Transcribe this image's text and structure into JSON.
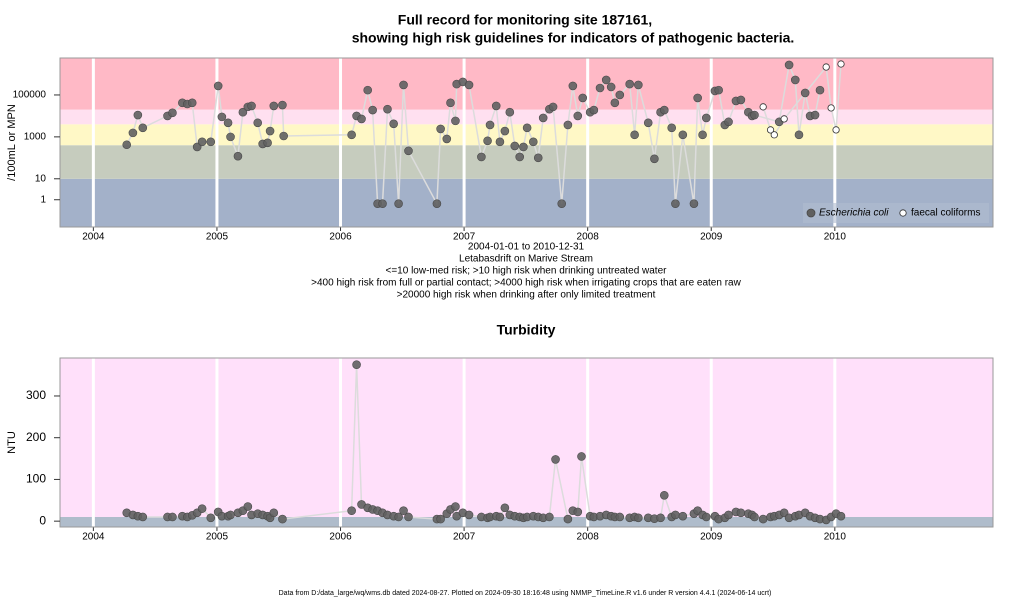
{
  "chart_data": [
    {
      "type": "scatter",
      "title": [
        "Full record for monitoring site 187161,",
        "showing high risk guidelines for indicators of pathogenic bacteria."
      ],
      "notes": [
        "2004-01-01 to 2010-12-31",
        "Letabasdrift on Marive Stream",
        "<=10 low-med risk; >10 high risk when drinking untreated water",
        ">400 high risk from full or partial contact; >4000 high risk when irrigating crops that are eaten raw",
        ">20000 high risk when drinking after only limited treatment"
      ],
      "y_label": "/100mL or MPN",
      "log_y": true,
      "xlim": [
        2003.73,
        2011.28
      ],
      "xticks": [
        2004,
        2005,
        2006,
        2007,
        2008,
        2009,
        2010
      ],
      "ylim": [
        0.05,
        5800000
      ],
      "yticks": [
        1,
        10,
        1000,
        100000
      ],
      "band_thresholds": [
        10,
        400,
        4000,
        20000
      ],
      "band_colors": [
        "#a3b1c9",
        "#c6ccbe",
        "#fff8c6",
        "#ffe0f0",
        "#ffb9c6"
      ],
      "line_color": "#dcdcdc",
      "legend": "bottom right",
      "series": [
        {
          "name": "Escherichia coli",
          "marker": "filled",
          "color": "#606060",
          "x": [
            2004.27,
            2004.32,
            2004.36,
            2004.4,
            2004.6,
            2004.64,
            2004.72,
            2004.76,
            2004.8,
            2004.84,
            2004.88,
            2004.95,
            2005.01,
            2005.04,
            2005.09,
            2005.11,
            2005.17,
            2005.21,
            2005.25,
            2005.28,
            2005.33,
            2005.37,
            2005.41,
            2005.43,
            2005.46,
            2005.53,
            2005.54,
            2006.09,
            2006.13,
            2006.17,
            2006.22,
            2006.26,
            2006.3,
            2006.34,
            2006.38,
            2006.43,
            2006.47,
            2006.51,
            2006.55,
            2006.78,
            2006.81,
            2006.86,
            2006.89,
            2006.93,
            2006.94,
            2006.99,
            2007.04,
            2007.14,
            2007.19,
            2007.21,
            2007.26,
            2007.29,
            2007.33,
            2007.37,
            2007.41,
            2007.45,
            2007.48,
            2007.51,
            2007.56,
            2007.6,
            2007.64,
            2007.69,
            2007.72,
            2007.79,
            2007.84,
            2007.88,
            2007.92,
            2007.96,
            2008.02,
            2008.05,
            2008.1,
            2008.15,
            2008.19,
            2008.22,
            2008.26,
            2008.34,
            2008.38,
            2008.41,
            2008.49,
            2008.54,
            2008.59,
            2008.62,
            2008.68,
            2008.71,
            2008.77,
            2008.86,
            2008.89,
            2008.93,
            2008.96,
            2009.03,
            2009.06,
            2009.11,
            2009.14,
            2009.2,
            2009.24,
            2009.3,
            2009.33,
            2009.35,
            2009.55,
            2009.63,
            2009.68,
            2009.71,
            2009.76,
            2009.8,
            2009.84,
            2009.88
          ],
          "values": [
            420,
            1550,
            11000,
            2700,
            10000,
            14000,
            42000,
            37000,
            42000,
            330,
            580,
            580,
            270000,
            9000,
            4700,
            1000,
            120,
            15000,
            27000,
            30000,
            4700,
            460,
            520,
            1900,
            30000,
            33000,
            1100,
            1250,
            10000,
            7200,
            170000,
            19000,
            0.65,
            0.65,
            21000,
            4200,
            0.65,
            300000,
            215,
            0.65,
            2400,
            800,
            42000,
            5800,
            330000,
            420000,
            300000,
            110,
            650,
            3700,
            30000,
            580,
            1900,
            15000,
            370,
            110,
            330,
            2700,
            580,
            100,
            8000,
            21000,
            27000,
            0.65,
            3700,
            270000,
            10000,
            72000,
            15000,
            19000,
            215000,
            520000,
            240000,
            42000,
            100000,
            330000,
            1250,
            300000,
            4700,
            90,
            15000,
            19000,
            2700,
            0.65,
            1250,
            0.65,
            72000,
            1250,
            8000,
            155000,
            170000,
            3700,
            5200,
            52000,
            58000,
            15000,
            10000,
            11000,
            5200,
            2700000,
            520000,
            1250,
            125000,
            10000,
            11000,
            170000
          ]
        },
        {
          "name": "faecal coliforms",
          "marker": "open",
          "color": "#303030",
          "x": [
            2009.42,
            2009.48,
            2009.51,
            2009.59,
            2009.93,
            2009.97,
            2010.01,
            2010.05
          ],
          "values": [
            27000,
            2150,
            1250,
            7200,
            2150000,
            24000,
            2150,
            3000000
          ]
        }
      ]
    },
    {
      "type": "scatter",
      "title": [
        "Turbidity"
      ],
      "y_label": "NTU",
      "log_y": false,
      "xlim": [
        2003.73,
        2011.28
      ],
      "xticks": [
        2004,
        2005,
        2006,
        2007,
        2008,
        2009,
        2010
      ],
      "ylim": [
        -14,
        391
      ],
      "yticks": [
        0,
        100,
        200,
        300
      ],
      "band_thresholds": [
        10
      ],
      "band_colors": [
        "#afbccb",
        "#ffe0fa"
      ],
      "line_color": "#dcdcdc",
      "series": [
        {
          "marker": "filled",
          "color": "#606060",
          "x": [
            2004.27,
            2004.32,
            2004.36,
            2004.4,
            2004.6,
            2004.64,
            2004.72,
            2004.76,
            2004.8,
            2004.84,
            2004.88,
            2004.95,
            2005.01,
            2005.04,
            2005.09,
            2005.11,
            2005.17,
            2005.21,
            2005.25,
            2005.28,
            2005.33,
            2005.37,
            2005.41,
            2005.43,
            2005.46,
            2005.53,
            2006.09,
            2006.13,
            2006.17,
            2006.22,
            2006.26,
            2006.3,
            2006.34,
            2006.38,
            2006.43,
            2006.47,
            2006.51,
            2006.55,
            2006.78,
            2006.81,
            2006.86,
            2006.89,
            2006.93,
            2006.94,
            2006.99,
            2007.04,
            2007.14,
            2007.19,
            2007.21,
            2007.26,
            2007.29,
            2007.33,
            2007.37,
            2007.41,
            2007.45,
            2007.48,
            2007.51,
            2007.56,
            2007.6,
            2007.64,
            2007.69,
            2007.74,
            2007.84,
            2007.88,
            2007.92,
            2007.95,
            2008.02,
            2008.05,
            2008.1,
            2008.15,
            2008.19,
            2008.22,
            2008.26,
            2008.34,
            2008.38,
            2008.41,
            2008.49,
            2008.54,
            2008.59,
            2008.62,
            2008.68,
            2008.71,
            2008.77,
            2008.86,
            2008.89,
            2008.93,
            2008.96,
            2009.03,
            2009.06,
            2009.11,
            2009.14,
            2009.2,
            2009.24,
            2009.3,
            2009.33,
            2009.35,
            2009.42,
            2009.48,
            2009.51,
            2009.55,
            2009.59,
            2009.63,
            2009.68,
            2009.71,
            2009.76,
            2009.8,
            2009.84,
            2009.88,
            2009.93,
            2009.97,
            2010.01,
            2010.05
          ],
          "values": [
            20,
            15,
            12,
            10,
            10,
            10,
            12,
            10,
            14,
            20,
            30,
            8,
            22,
            12,
            12,
            15,
            20,
            25,
            35,
            15,
            18,
            15,
            12,
            8,
            20,
            5,
            25,
            375,
            40,
            32,
            28,
            25,
            20,
            15,
            12,
            10,
            25,
            10,
            5,
            5,
            18,
            28,
            35,
            12,
            20,
            15,
            10,
            8,
            10,
            12,
            10,
            32,
            15,
            12,
            10,
            8,
            10,
            12,
            10,
            8,
            10,
            148,
            5,
            25,
            22,
            155,
            12,
            10,
            12,
            15,
            12,
            10,
            10,
            8,
            10,
            8,
            8,
            6,
            8,
            62,
            10,
            15,
            12,
            18,
            25,
            15,
            10,
            12,
            5,
            8,
            15,
            22,
            20,
            18,
            15,
            10,
            5,
            10,
            12,
            15,
            20,
            8,
            12,
            15,
            20,
            12,
            8,
            5,
            3,
            10,
            18,
            12
          ]
        }
      ]
    }
  ],
  "footer": "Data from D:/data_large/wq/wms.db dated 2024-08-27. Plotted on 2024-09-30 18:16:48 using NMMP_TimeLine.R v1.6 under R version 4.4.1 (2024-06-14 ucrt)"
}
